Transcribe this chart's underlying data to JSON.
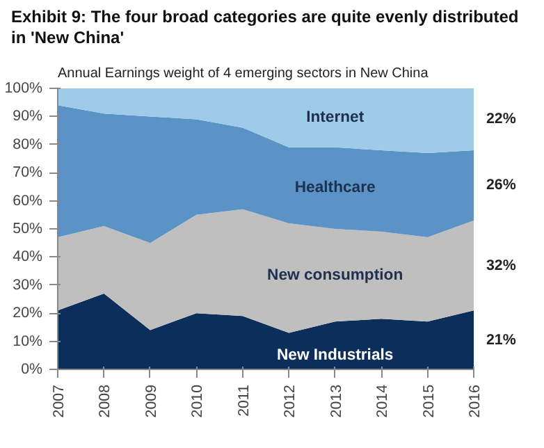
{
  "chart_data": {
    "type": "area",
    "stacked": true,
    "title": "Exhibit 9: The four broad categories are quite evenly distributed in 'New China'",
    "subtitle": "Annual Earnings weight of 4 emerging sectors in New China",
    "x": [
      2007,
      2008,
      2009,
      2010,
      2011,
      2012,
      2013,
      2014,
      2015,
      2016
    ],
    "xlim": [
      2007,
      2016
    ],
    "xticks": [
      2007,
      2008,
      2009,
      2010,
      2011,
      2012,
      2013,
      2014,
      2015,
      2016
    ],
    "ylim": [
      0,
      100
    ],
    "yticks": [
      {
        "value": 0,
        "label": "0%"
      },
      {
        "value": 10,
        "label": "10%"
      },
      {
        "value": 20,
        "label": "20%"
      },
      {
        "value": 30,
        "label": "30%"
      },
      {
        "value": 40,
        "label": "40%"
      },
      {
        "value": 50,
        "label": "50%"
      },
      {
        "value": 60,
        "label": "60%"
      },
      {
        "value": 70,
        "label": "70%"
      },
      {
        "value": 80,
        "label": "80%"
      },
      {
        "value": 90,
        "label": "90%"
      },
      {
        "value": 100,
        "label": "100%"
      }
    ],
    "series": [
      {
        "name": "New Industrials",
        "color": "#0b2e5a",
        "values": [
          21,
          27,
          14,
          20,
          19,
          13,
          17,
          18,
          17,
          21
        ]
      },
      {
        "name": "New consumption",
        "color": "#bfbfbf",
        "values": [
          26,
          24,
          31,
          35,
          38,
          39,
          33,
          31,
          30,
          32
        ]
      },
      {
        "name": "Healthcare",
        "color": "#5b93c6",
        "values": [
          47,
          40,
          45,
          34,
          29,
          27,
          29,
          29,
          30,
          25
        ]
      },
      {
        "name": "Internet",
        "color": "#9dcbe8",
        "values": [
          6,
          9,
          10,
          11,
          14,
          21,
          21,
          22,
          23,
          22
        ]
      }
    ],
    "annotations": [
      "22%",
      "26%",
      "32%",
      "21%"
    ],
    "grid": false,
    "legend": false
  }
}
